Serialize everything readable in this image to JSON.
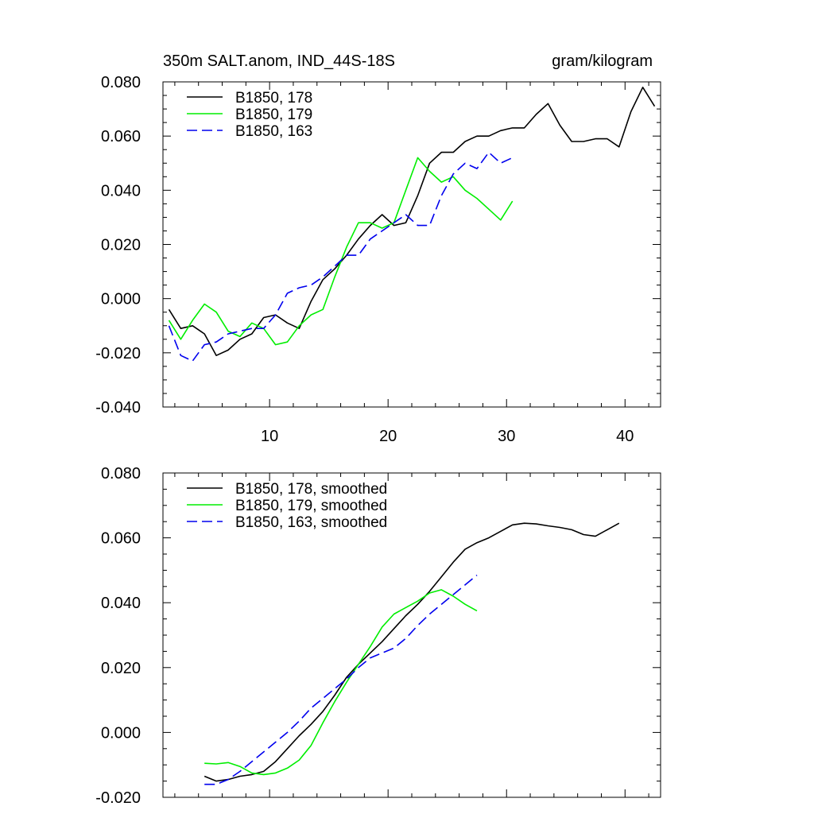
{
  "colors": {
    "series_178": "#000000",
    "series_179": "#00ee00",
    "series_163": "#0000ee"
  },
  "chart_data": [
    {
      "type": "line",
      "title": "350m SALT.anom, IND_44S-18S",
      "units": "gram/kilogram",
      "xlabel": "",
      "ylabel": "",
      "xlim": [
        1,
        43
      ],
      "ylim": [
        -0.04,
        0.08
      ],
      "xticks": [
        10,
        20,
        30,
        40
      ],
      "xtick_labels": [
        "10",
        "20",
        "30",
        "40"
      ],
      "yticks": [
        -0.04,
        -0.02,
        0.0,
        0.02,
        0.04,
        0.06,
        0.08
      ],
      "ytick_labels": [
        "-0.040",
        "-0.020",
        "0.000",
        "0.020",
        "0.040",
        "0.060",
        "0.080"
      ],
      "legend_position": "top-left",
      "series": [
        {
          "name": "B1850, 178",
          "color": "#000000",
          "dash": "solid",
          "x": [
            1.5,
            2.5,
            3.5,
            4.5,
            5.5,
            6.5,
            7.5,
            8.5,
            9.5,
            10.5,
            11.5,
            12.5,
            13.5,
            14.5,
            15.5,
            16.5,
            17.5,
            18.5,
            19.5,
            20.5,
            21.5,
            22.5,
            23.5,
            24.5,
            25.5,
            26.5,
            27.5,
            28.5,
            29.5,
            30.5,
            31.5,
            32.5,
            33.5,
            34.5,
            35.5,
            36.5,
            37.5,
            38.5,
            39.5,
            40.5,
            41.5,
            42.5
          ],
          "values": [
            -0.004,
            -0.011,
            -0.01,
            -0.013,
            -0.021,
            -0.019,
            -0.015,
            -0.013,
            -0.007,
            -0.006,
            -0.009,
            -0.011,
            -0.001,
            0.007,
            0.011,
            0.016,
            0.022,
            0.027,
            0.031,
            0.027,
            0.028,
            0.038,
            0.05,
            0.054,
            0.054,
            0.058,
            0.06,
            0.06,
            0.062,
            0.063,
            0.063,
            0.068,
            0.072,
            0.064,
            0.058,
            0.058,
            0.059,
            0.059,
            0.056,
            0.069,
            0.078,
            0.071
          ]
        },
        {
          "name": "B1850, 179",
          "color": "#00ee00",
          "dash": "solid",
          "x": [
            1.5,
            2.5,
            3.5,
            4.5,
            5.5,
            6.5,
            7.5,
            8.5,
            9.5,
            10.5,
            11.5,
            12.5,
            13.5,
            14.5,
            15.5,
            16.5,
            17.5,
            18.5,
            19.5,
            20.5,
            21.5,
            22.5,
            23.5,
            24.5,
            25.5,
            26.5,
            27.5,
            28.5,
            29.5,
            30.5
          ],
          "values": [
            -0.008,
            -0.015,
            -0.008,
            -0.002,
            -0.005,
            -0.012,
            -0.014,
            -0.009,
            -0.011,
            -0.017,
            -0.016,
            -0.01,
            -0.006,
            -0.004,
            0.008,
            0.019,
            0.028,
            0.028,
            0.026,
            0.028,
            0.04,
            0.052,
            0.047,
            0.043,
            0.045,
            0.04,
            0.037,
            0.033,
            0.029,
            0.036
          ]
        },
        {
          "name": "B1850, 163",
          "color": "#0000ee",
          "dash": "dashed",
          "x": [
            1.5,
            2.5,
            3.5,
            4.5,
            5.5,
            6.5,
            7.5,
            8.5,
            9.5,
            10.5,
            11.5,
            12.5,
            13.5,
            14.5,
            15.5,
            16.5,
            17.5,
            18.5,
            19.5,
            20.5,
            21.5,
            22.5,
            23.5,
            24.5,
            25.5,
            26.5,
            27.5,
            28.5,
            29.5,
            30.5
          ],
          "values": [
            -0.01,
            -0.021,
            -0.023,
            -0.017,
            -0.016,
            -0.013,
            -0.012,
            -0.011,
            -0.011,
            -0.006,
            0.002,
            0.004,
            0.005,
            0.008,
            0.012,
            0.016,
            0.016,
            0.022,
            0.025,
            0.028,
            0.031,
            0.027,
            0.027,
            0.038,
            0.046,
            0.05,
            0.048,
            0.054,
            0.05,
            0.052
          ]
        }
      ]
    },
    {
      "type": "line",
      "title": "",
      "xlabel": "",
      "ylabel": "",
      "xlim": [
        1,
        43
      ],
      "ylim": [
        -0.02,
        0.08
      ],
      "xticks": [
        10,
        20,
        30,
        40
      ],
      "xtick_labels": [
        "",
        "",
        "",
        ""
      ],
      "yticks": [
        -0.02,
        0.0,
        0.02,
        0.04,
        0.06,
        0.08
      ],
      "ytick_labels": [
        "-0.020",
        "0.000",
        "0.020",
        "0.040",
        "0.060",
        "0.080"
      ],
      "legend_position": "top-left",
      "series": [
        {
          "name": "B1850, 178, smoothed",
          "color": "#000000",
          "dash": "solid",
          "x": [
            4.5,
            5.5,
            6.5,
            7.5,
            8.5,
            9.5,
            10.5,
            11.5,
            12.5,
            13.5,
            14.5,
            15.5,
            16.5,
            17.5,
            18.5,
            19.5,
            20.5,
            21.5,
            22.5,
            23.5,
            24.5,
            25.5,
            26.5,
            27.5,
            28.5,
            29.5,
            30.5,
            31.5,
            32.5,
            33.5,
            34.5,
            35.5,
            36.5,
            37.5,
            38.5,
            39.5
          ],
          "values": [
            -0.0135,
            -0.015,
            -0.0145,
            -0.0135,
            -0.013,
            -0.012,
            -0.009,
            -0.005,
            -0.001,
            0.0025,
            0.0065,
            0.0115,
            0.017,
            0.021,
            0.0245,
            0.028,
            0.032,
            0.036,
            0.0395,
            0.0435,
            0.048,
            0.0525,
            0.0565,
            0.0585,
            0.06,
            0.062,
            0.064,
            0.0645,
            0.0643,
            0.0637,
            0.0632,
            0.0625,
            0.061,
            0.0605,
            0.0625,
            0.0645
          ]
        },
        {
          "name": "B1850, 179, smoothed",
          "color": "#00ee00",
          "dash": "solid",
          "x": [
            4.5,
            5.5,
            6.5,
            7.5,
            8.5,
            9.5,
            10.5,
            11.5,
            12.5,
            13.5,
            14.5,
            15.5,
            16.5,
            17.5,
            18.5,
            19.5,
            20.5,
            21.5,
            22.5,
            23.5,
            24.5,
            25.5,
            26.5,
            27.5
          ],
          "values": [
            -0.0095,
            -0.0097,
            -0.0093,
            -0.0105,
            -0.0125,
            -0.013,
            -0.0125,
            -0.011,
            -0.0085,
            -0.004,
            0.003,
            0.0095,
            0.0155,
            0.021,
            0.0265,
            0.0325,
            0.0365,
            0.0385,
            0.0405,
            0.043,
            0.044,
            0.042,
            0.0395,
            0.0375
          ]
        },
        {
          "name": "B1850, 163, smoothed",
          "color": "#0000ee",
          "dash": "dashed",
          "x": [
            4.5,
            5.5,
            6.5,
            7.5,
            8.5,
            9.5,
            10.5,
            11.5,
            12.5,
            13.5,
            14.5,
            15.5,
            16.5,
            17.5,
            18.5,
            19.5,
            20.5,
            21.5,
            22.5,
            23.5,
            24.5,
            25.5,
            26.5,
            27.5
          ],
          "values": [
            -0.016,
            -0.016,
            -0.0145,
            -0.012,
            -0.009,
            -0.006,
            -0.003,
            0.0,
            0.0035,
            0.0075,
            0.0105,
            0.0135,
            0.0165,
            0.02,
            0.023,
            0.0245,
            0.026,
            0.029,
            0.033,
            0.0365,
            0.0395,
            0.0425,
            0.0455,
            0.0485
          ]
        }
      ]
    }
  ]
}
